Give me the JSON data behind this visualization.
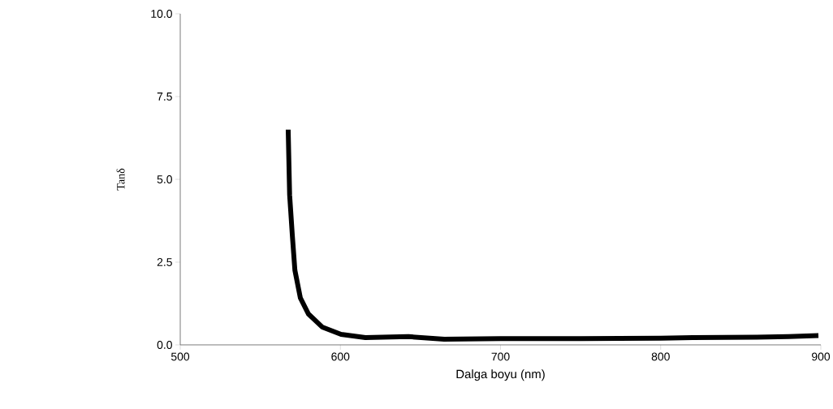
{
  "chart_data": {
    "type": "line",
    "xlabel": "Dalga boyu (nm)",
    "ylabel": "Tanδ",
    "x": [
      567.4,
      568.3,
      570,
      571.6,
      575,
      580.1,
      588.6,
      600.4,
      615.6,
      642.5,
      664.8,
      700,
      750,
      800,
      820,
      860,
      880,
      898.5
    ],
    "series": [
      {
        "color": "#000000",
        "values": [
          6.5,
          4.53,
          3.3,
          2.25,
          1.42,
          0.93,
          0.54,
          0.32,
          0.22,
          0.25,
          0.17,
          0.19,
          0.19,
          0.2,
          0.22,
          0.23,
          0.25,
          0.28
        ]
      }
    ],
    "xlim": [
      500,
      900
    ],
    "ylim": [
      0,
      10
    ],
    "xticks": [
      500,
      600,
      700,
      800,
      900
    ],
    "yticks": [
      {
        "value": 0,
        "label": "0.0"
      },
      {
        "value": 2.5,
        "label": "2.5"
      },
      {
        "value": 5,
        "label": "5.0"
      },
      {
        "value": 7.5,
        "label": "7.5"
      },
      {
        "value": 10,
        "label": "10.0"
      }
    ],
    "marker": "none",
    "line_style": "solid"
  }
}
